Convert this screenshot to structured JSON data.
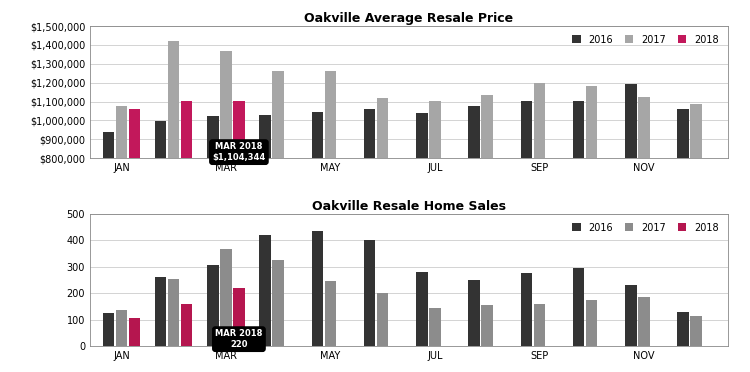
{
  "chart_data": [
    {
      "type": "bar",
      "title": "Oakville Average Resale Price",
      "categories": [
        "JAN",
        null,
        "MAR",
        null,
        "MAY",
        null,
        "JUL",
        null,
        "SEP",
        null,
        "NOV",
        null
      ],
      "series": [
        {
          "name": "2016",
          "color": "#333333",
          "values": [
            940000,
            995000,
            1025000,
            1030000,
            1045000,
            1060000,
            1040000,
            1075000,
            1105000,
            1105000,
            1195000,
            1060000
          ]
        },
        {
          "name": "2017",
          "color": "#a6a6a6",
          "values": [
            1075000,
            1420000,
            1370000,
            1260000,
            1260000,
            1120000,
            1105000,
            1135000,
            1200000,
            1185000,
            1125000,
            1085000
          ]
        },
        {
          "name": "2018",
          "color": "#c2185b",
          "values": [
            1060000,
            1105000,
            1104344,
            null,
            null,
            null,
            null,
            null,
            null,
            null,
            null,
            null
          ]
        }
      ],
      "ylim": [
        800000,
        1500000
      ],
      "yticks": [
        {
          "value": 800000,
          "label": "$800,000"
        },
        {
          "value": 900000,
          "label": "$900,000"
        },
        {
          "value": 1000000,
          "label": "$1,000,000"
        },
        {
          "value": 1100000,
          "label": "$1,100,000"
        },
        {
          "value": 1200000,
          "label": "$1,200,000"
        },
        {
          "value": 1300000,
          "label": "$1,300,000"
        },
        {
          "value": 1400000,
          "label": "$1,400,000"
        },
        {
          "value": 1500000,
          "label": "$1,500,000"
        }
      ],
      "grid": true,
      "legend": "upper right",
      "annotations": [
        {
          "x": "MAR",
          "series": "2018",
          "text": [
            "MAR 2018",
            "$1,104,344"
          ]
        }
      ]
    },
    {
      "type": "bar",
      "title": "Oakville Resale Home Sales",
      "categories": [
        "JAN",
        null,
        "MAR",
        null,
        "MAY",
        null,
        "JUL",
        null,
        "SEP",
        null,
        "NOV",
        null
      ],
      "series": [
        {
          "name": "2016",
          "color": "#333333",
          "values": [
            125,
            260,
            305,
            420,
            435,
            400,
            280,
            250,
            275,
            295,
            230,
            130
          ]
        },
        {
          "name": "2017",
          "color": "#8c8c8c",
          "values": [
            135,
            255,
            365,
            325,
            245,
            200,
            145,
            155,
            160,
            175,
            185,
            115
          ]
        },
        {
          "name": "2018",
          "color": "#b5164f",
          "values": [
            105,
            160,
            220,
            null,
            null,
            null,
            null,
            null,
            null,
            null,
            null,
            null
          ]
        }
      ],
      "ylim": [
        0,
        500
      ],
      "yticks": [
        0,
        100,
        200,
        300,
        400,
        500
      ],
      "grid": true,
      "legend": "upper right",
      "annotations": [
        {
          "x": "MAR",
          "series": "2018",
          "text": [
            "MAR 2018",
            "220"
          ]
        }
      ]
    }
  ]
}
